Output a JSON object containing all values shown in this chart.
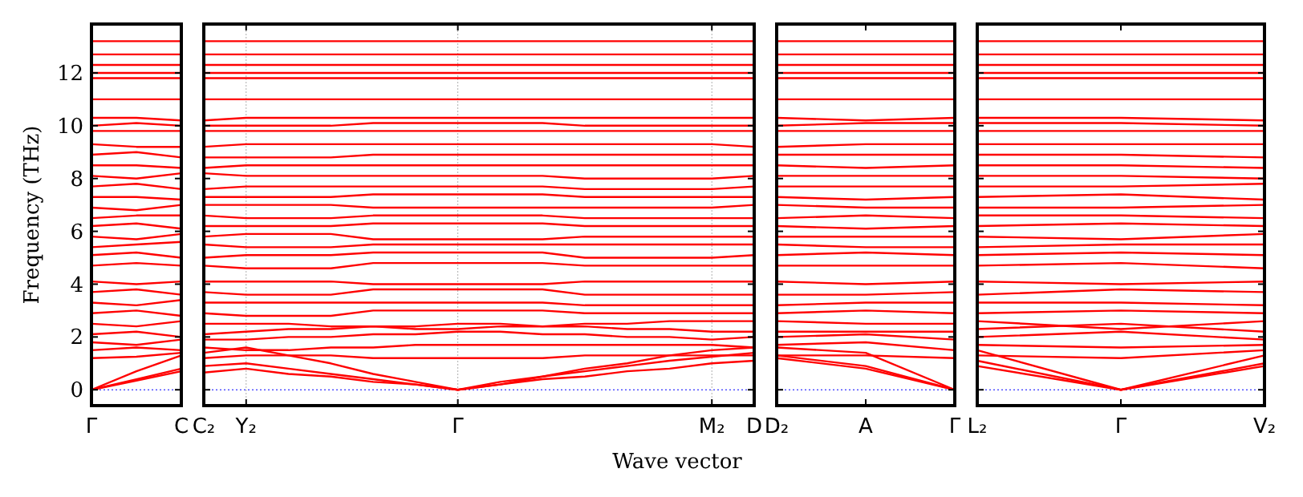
{
  "chart_data": [
    {
      "type": "line",
      "ylabel": "Frequency (THz)",
      "categories": [
        "Γ",
        null,
        "C"
      ],
      "ylim": [
        -0.6,
        13.85
      ],
      "yticks": [
        0,
        2,
        4,
        6,
        8,
        10,
        12
      ],
      "line_style": "solid",
      "ref_lines": [
        {
          "axis": "y",
          "value": 0,
          "color": "#0000ff",
          "line_style": "dotted"
        }
      ],
      "series": [
        {
          "color": "#ff0000",
          "values": [
            0,
            0.35,
            0.7
          ]
        },
        {
          "color": "#ff0000",
          "values": [
            0,
            0.4,
            0.8
          ]
        },
        {
          "color": "#ff0000",
          "values": [
            0,
            0.7,
            1.3
          ]
        },
        {
          "color": "#ff0000",
          "values": [
            1.2,
            1.25,
            1.4
          ]
        },
        {
          "color": "#ff0000",
          "values": [
            1.5,
            1.6,
            1.5
          ]
        },
        {
          "color": "#ff0000",
          "values": [
            1.8,
            1.7,
            1.9
          ]
        },
        {
          "color": "#ff0000",
          "values": [
            2.1,
            2.2,
            2.0
          ]
        },
        {
          "color": "#ff0000",
          "values": [
            2.5,
            2.4,
            2.6
          ]
        },
        {
          "color": "#ff0000",
          "values": [
            2.9,
            3.0,
            2.8
          ]
        },
        {
          "color": "#ff0000",
          "values": [
            3.3,
            3.2,
            3.4
          ]
        },
        {
          "color": "#ff0000",
          "values": [
            3.7,
            3.8,
            3.6
          ]
        },
        {
          "color": "#ff0000",
          "values": [
            4.1,
            4.0,
            4.1
          ]
        },
        {
          "color": "#ff0000",
          "values": [
            4.7,
            4.8,
            4.7
          ]
        },
        {
          "color": "#ff0000",
          "values": [
            5.1,
            5.2,
            5.0
          ]
        },
        {
          "color": "#ff0000",
          "values": [
            5.4,
            5.5,
            5.6
          ]
        },
        {
          "color": "#ff0000",
          "values": [
            5.8,
            5.7,
            5.9
          ]
        },
        {
          "color": "#ff0000",
          "values": [
            6.2,
            6.3,
            6.1
          ]
        },
        {
          "color": "#ff0000",
          "values": [
            6.5,
            6.6,
            6.6
          ]
        },
        {
          "color": "#ff0000",
          "values": [
            6.9,
            6.8,
            7.0
          ]
        },
        {
          "color": "#ff0000",
          "values": [
            7.3,
            7.3,
            7.2
          ]
        },
        {
          "color": "#ff0000",
          "values": [
            7.7,
            7.8,
            7.6
          ]
        },
        {
          "color": "#ff0000",
          "values": [
            8.1,
            8.0,
            8.2
          ]
        },
        {
          "color": "#ff0000",
          "values": [
            8.5,
            8.5,
            8.4
          ]
        },
        {
          "color": "#ff0000",
          "values": [
            8.9,
            9.0,
            8.8
          ]
        },
        {
          "color": "#ff0000",
          "values": [
            9.3,
            9.2,
            9.2
          ]
        },
        {
          "color": "#ff0000",
          "values": [
            9.8,
            9.8,
            9.8
          ]
        },
        {
          "color": "#ff0000",
          "values": [
            10.0,
            10.1,
            10.0
          ]
        },
        {
          "color": "#ff0000",
          "values": [
            10.3,
            10.3,
            10.2
          ]
        },
        {
          "color": "#ff0000",
          "values": [
            11.0,
            11.0,
            11.0
          ]
        },
        {
          "color": "#ff0000",
          "values": [
            11.8,
            11.8,
            11.8
          ]
        },
        {
          "color": "#ff0000",
          "values": [
            12.0,
            12.0,
            12.0
          ]
        },
        {
          "color": "#ff0000",
          "values": [
            12.3,
            12.3,
            12.3
          ]
        },
        {
          "color": "#ff0000",
          "values": [
            12.7,
            12.7,
            12.7
          ]
        },
        {
          "color": "#ff0000",
          "values": [
            13.2,
            13.2,
            13.2
          ]
        }
      ]
    },
    {
      "type": "line",
      "xlabel": "Wave vector",
      "categories": [
        "C₂",
        "Y₂",
        null,
        null,
        null,
        null,
        "Γ",
        null,
        null,
        null,
        null,
        null,
        "M₂",
        "D"
      ],
      "ylim": [
        -0.6,
        13.85
      ],
      "yticks": [
        0,
        2,
        4,
        6,
        8,
        10,
        12
      ],
      "tick_labels": "x",
      "grid": "x",
      "line_style": "solid",
      "ref_lines": [
        {
          "axis": "y",
          "value": 0,
          "color": "#0000ff",
          "line_style": "dotted"
        }
      ],
      "series": [
        {
          "color": "#ff0000",
          "values": [
            0.65,
            0.8,
            0.6,
            0.5,
            0.3,
            0.2,
            0,
            0.2,
            0.4,
            0.5,
            0.7,
            0.8,
            1.0,
            1.1
          ]
        },
        {
          "color": "#ff0000",
          "values": [
            0.9,
            1.0,
            0.8,
            0.6,
            0.4,
            0.2,
            0,
            0.2,
            0.5,
            0.7,
            0.9,
            1.1,
            1.25,
            1.4
          ]
        },
        {
          "color": "#ff0000",
          "values": [
            1.4,
            1.6,
            1.3,
            1.0,
            0.6,
            0.3,
            0,
            0.3,
            0.5,
            0.8,
            1.0,
            1.3,
            1.5,
            1.6
          ]
        },
        {
          "color": "#ff0000",
          "values": [
            1.2,
            1.3,
            1.3,
            1.3,
            1.2,
            1.2,
            1.2,
            1.2,
            1.2,
            1.3,
            1.3,
            1.3,
            1.3,
            1.3
          ]
        },
        {
          "color": "#ff0000",
          "values": [
            1.6,
            1.5,
            1.5,
            1.6,
            1.6,
            1.7,
            1.7,
            1.7,
            1.7,
            1.7,
            1.7,
            1.7,
            1.7,
            1.6
          ]
        },
        {
          "color": "#ff0000",
          "values": [
            1.9,
            1.9,
            2.0,
            2.0,
            2.1,
            2.1,
            2.2,
            2.2,
            2.1,
            2.1,
            2.0,
            2.0,
            1.9,
            2.0
          ]
        },
        {
          "color": "#ff0000",
          "values": [
            2.1,
            2.2,
            2.3,
            2.3,
            2.4,
            2.4,
            2.5,
            2.5,
            2.4,
            2.4,
            2.3,
            2.3,
            2.2,
            2.2
          ]
        },
        {
          "color": "#ff0000",
          "values": [
            2.5,
            2.5,
            2.5,
            2.4,
            2.4,
            2.3,
            2.3,
            2.4,
            2.4,
            2.5,
            2.5,
            2.6,
            2.6,
            2.6
          ]
        },
        {
          "color": "#ff0000",
          "values": [
            2.9,
            2.8,
            2.8,
            2.8,
            3.0,
            3.0,
            3.0,
            3.0,
            3.0,
            2.9,
            2.9,
            2.9,
            2.9,
            2.9
          ]
        },
        {
          "color": "#ff0000",
          "values": [
            3.3,
            3.3,
            3.3,
            3.3,
            3.3,
            3.3,
            3.3,
            3.3,
            3.3,
            3.2,
            3.2,
            3.2,
            3.2,
            3.2
          ]
        },
        {
          "color": "#ff0000",
          "values": [
            3.7,
            3.6,
            3.6,
            3.6,
            3.8,
            3.8,
            3.8,
            3.8,
            3.8,
            3.6,
            3.6,
            3.6,
            3.6,
            3.6
          ]
        },
        {
          "color": "#ff0000",
          "values": [
            4.1,
            4.1,
            4.1,
            4.1,
            4.0,
            4.0,
            4.0,
            4.0,
            4.0,
            4.1,
            4.1,
            4.1,
            4.1,
            4.1
          ]
        },
        {
          "color": "#ff0000",
          "values": [
            4.7,
            4.6,
            4.6,
            4.6,
            4.8,
            4.8,
            4.8,
            4.8,
            4.8,
            4.7,
            4.7,
            4.7,
            4.7,
            4.7
          ]
        },
        {
          "color": "#ff0000",
          "values": [
            5.0,
            5.1,
            5.1,
            5.1,
            5.2,
            5.2,
            5.2,
            5.2,
            5.2,
            5.0,
            5.0,
            5.0,
            5.0,
            5.1
          ]
        },
        {
          "color": "#ff0000",
          "values": [
            5.5,
            5.4,
            5.4,
            5.4,
            5.5,
            5.5,
            5.5,
            5.5,
            5.5,
            5.5,
            5.5,
            5.5,
            5.5,
            5.5
          ]
        },
        {
          "color": "#ff0000",
          "values": [
            5.8,
            5.9,
            5.9,
            5.9,
            5.7,
            5.7,
            5.7,
            5.7,
            5.7,
            5.8,
            5.8,
            5.8,
            5.8,
            5.8
          ]
        },
        {
          "color": "#ff0000",
          "values": [
            6.2,
            6.2,
            6.2,
            6.2,
            6.3,
            6.3,
            6.3,
            6.3,
            6.3,
            6.2,
            6.2,
            6.2,
            6.2,
            6.2
          ]
        },
        {
          "color": "#ff0000",
          "values": [
            6.6,
            6.5,
            6.5,
            6.5,
            6.6,
            6.6,
            6.6,
            6.6,
            6.6,
            6.5,
            6.5,
            6.5,
            6.5,
            6.5
          ]
        },
        {
          "color": "#ff0000",
          "values": [
            7.0,
            7.0,
            7.0,
            7.0,
            6.9,
            6.9,
            6.9,
            6.9,
            6.9,
            6.9,
            6.9,
            6.9,
            6.9,
            7.0
          ]
        },
        {
          "color": "#ff0000",
          "values": [
            7.3,
            7.3,
            7.3,
            7.3,
            7.4,
            7.4,
            7.4,
            7.4,
            7.4,
            7.3,
            7.3,
            7.3,
            7.3,
            7.3
          ]
        },
        {
          "color": "#ff0000",
          "values": [
            7.6,
            7.7,
            7.7,
            7.7,
            7.7,
            7.7,
            7.7,
            7.7,
            7.7,
            7.6,
            7.6,
            7.6,
            7.6,
            7.7
          ]
        },
        {
          "color": "#ff0000",
          "values": [
            8.2,
            8.1,
            8.1,
            8.1,
            8.1,
            8.1,
            8.1,
            8.1,
            8.1,
            8.0,
            8.0,
            8.0,
            8.0,
            8.1
          ]
        },
        {
          "color": "#ff0000",
          "values": [
            8.4,
            8.5,
            8.5,
            8.5,
            8.5,
            8.5,
            8.5,
            8.5,
            8.5,
            8.5,
            8.5,
            8.5,
            8.5,
            8.5
          ]
        },
        {
          "color": "#ff0000",
          "values": [
            8.8,
            8.8,
            8.8,
            8.8,
            8.9,
            8.9,
            8.9,
            8.9,
            8.9,
            8.9,
            8.9,
            8.9,
            8.9,
            8.9
          ]
        },
        {
          "color": "#ff0000",
          "values": [
            9.2,
            9.3,
            9.3,
            9.3,
            9.3,
            9.3,
            9.3,
            9.3,
            9.3,
            9.3,
            9.3,
            9.3,
            9.3,
            9.2
          ]
        },
        {
          "color": "#ff0000",
          "values": [
            9.8,
            9.8,
            9.8,
            9.8,
            9.8,
            9.8,
            9.8,
            9.8,
            9.8,
            9.8,
            9.8,
            9.8,
            9.8,
            9.8
          ]
        },
        {
          "color": "#ff0000",
          "values": [
            10.0,
            10.0,
            10.0,
            10.0,
            10.1,
            10.1,
            10.1,
            10.1,
            10.1,
            10.0,
            10.0,
            10.0,
            10.0,
            10.0
          ]
        },
        {
          "color": "#ff0000",
          "values": [
            10.2,
            10.3,
            10.3,
            10.3,
            10.3,
            10.3,
            10.3,
            10.3,
            10.3,
            10.3,
            10.3,
            10.3,
            10.3,
            10.3
          ]
        },
        {
          "color": "#ff0000",
          "values": [
            11.0,
            11.0,
            11.0,
            11.0,
            11.0,
            11.0,
            11.0,
            11.0,
            11.0,
            11.0,
            11.0,
            11.0,
            11.0,
            11.0
          ]
        },
        {
          "color": "#ff0000",
          "values": [
            11.8,
            11.8,
            11.8,
            11.8,
            11.8,
            11.8,
            11.8,
            11.8,
            11.8,
            11.8,
            11.8,
            11.8,
            11.8,
            11.8
          ]
        },
        {
          "color": "#ff0000",
          "values": [
            12.0,
            12.0,
            12.0,
            12.0,
            12.0,
            12.0,
            12.0,
            12.0,
            12.0,
            12.0,
            12.0,
            12.0,
            12.0,
            12.0
          ]
        },
        {
          "color": "#ff0000",
          "values": [
            12.3,
            12.3,
            12.3,
            12.3,
            12.3,
            12.3,
            12.3,
            12.3,
            12.3,
            12.3,
            12.3,
            12.3,
            12.3,
            12.3
          ]
        },
        {
          "color": "#ff0000",
          "values": [
            12.7,
            12.7,
            12.7,
            12.7,
            12.7,
            12.7,
            12.7,
            12.7,
            12.7,
            12.7,
            12.7,
            12.7,
            12.7,
            12.7
          ]
        },
        {
          "color": "#ff0000",
          "values": [
            13.2,
            13.2,
            13.2,
            13.2,
            13.2,
            13.2,
            13.2,
            13.2,
            13.2,
            13.2,
            13.2,
            13.2,
            13.2,
            13.2
          ]
        }
      ]
    },
    {
      "type": "line",
      "categories": [
        "D₂",
        "A",
        "Γ"
      ],
      "ylim": [
        -0.6,
        13.85
      ],
      "yticks": [
        0,
        2,
        4,
        6,
        8,
        10,
        12
      ],
      "tick_labels": "x",
      "line_style": "solid",
      "ref_lines": [
        {
          "axis": "y",
          "value": 0,
          "color": "#0000ff",
          "line_style": "dotted"
        }
      ],
      "series": [
        {
          "color": "#ff0000",
          "values": [
            1.2,
            0.8,
            0
          ]
        },
        {
          "color": "#ff0000",
          "values": [
            1.3,
            0.9,
            0
          ]
        },
        {
          "color": "#ff0000",
          "values": [
            1.6,
            1.4,
            0
          ]
        },
        {
          "color": "#ff0000",
          "values": [
            1.3,
            1.3,
            1.2
          ]
        },
        {
          "color": "#ff0000",
          "values": [
            1.7,
            1.8,
            1.5
          ]
        },
        {
          "color": "#ff0000",
          "values": [
            2.0,
            2.1,
            1.9
          ]
        },
        {
          "color": "#ff0000",
          "values": [
            2.2,
            2.2,
            2.2
          ]
        },
        {
          "color": "#ff0000",
          "values": [
            2.6,
            2.5,
            2.5
          ]
        },
        {
          "color": "#ff0000",
          "values": [
            2.9,
            3.0,
            2.9
          ]
        },
        {
          "color": "#ff0000",
          "values": [
            3.2,
            3.3,
            3.3
          ]
        },
        {
          "color": "#ff0000",
          "values": [
            3.6,
            3.6,
            3.7
          ]
        },
        {
          "color": "#ff0000",
          "values": [
            4.1,
            4.0,
            4.1
          ]
        },
        {
          "color": "#ff0000",
          "values": [
            4.7,
            4.7,
            4.7
          ]
        },
        {
          "color": "#ff0000",
          "values": [
            5.1,
            5.2,
            5.1
          ]
        },
        {
          "color": "#ff0000",
          "values": [
            5.5,
            5.4,
            5.4
          ]
        },
        {
          "color": "#ff0000",
          "values": [
            5.8,
            5.8,
            5.8
          ]
        },
        {
          "color": "#ff0000",
          "values": [
            6.2,
            6.1,
            6.2
          ]
        },
        {
          "color": "#ff0000",
          "values": [
            6.5,
            6.6,
            6.5
          ]
        },
        {
          "color": "#ff0000",
          "values": [
            7.0,
            6.9,
            6.9
          ]
        },
        {
          "color": "#ff0000",
          "values": [
            7.3,
            7.2,
            7.3
          ]
        },
        {
          "color": "#ff0000",
          "values": [
            7.7,
            7.7,
            7.7
          ]
        },
        {
          "color": "#ff0000",
          "values": [
            8.1,
            8.1,
            8.1
          ]
        },
        {
          "color": "#ff0000",
          "values": [
            8.5,
            8.4,
            8.5
          ]
        },
        {
          "color": "#ff0000",
          "values": [
            8.9,
            8.9,
            8.9
          ]
        },
        {
          "color": "#ff0000",
          "values": [
            9.2,
            9.3,
            9.3
          ]
        },
        {
          "color": "#ff0000",
          "values": [
            9.8,
            9.8,
            9.8
          ]
        },
        {
          "color": "#ff0000",
          "values": [
            10.0,
            10.1,
            10.1
          ]
        },
        {
          "color": "#ff0000",
          "values": [
            10.3,
            10.2,
            10.3
          ]
        },
        {
          "color": "#ff0000",
          "values": [
            11.0,
            11.0,
            11.0
          ]
        },
        {
          "color": "#ff0000",
          "values": [
            11.8,
            11.8,
            11.8
          ]
        },
        {
          "color": "#ff0000",
          "values": [
            12.0,
            12.0,
            12.0
          ]
        },
        {
          "color": "#ff0000",
          "values": [
            12.3,
            12.3,
            12.3
          ]
        },
        {
          "color": "#ff0000",
          "values": [
            12.7,
            12.7,
            12.7
          ]
        },
        {
          "color": "#ff0000",
          "values": [
            13.2,
            13.2,
            13.2
          ]
        }
      ]
    },
    {
      "type": "line",
      "categories": [
        "L₂",
        "Γ",
        "V₂"
      ],
      "ylim": [
        -0.6,
        13.85
      ],
      "yticks": [
        0,
        2,
        4,
        6,
        8,
        10,
        12
      ],
      "tick_labels": "x",
      "line_style": "solid",
      "ref_lines": [
        {
          "axis": "y",
          "value": 0,
          "color": "#0000ff",
          "line_style": "dotted"
        }
      ],
      "series": [
        {
          "color": "#ff0000",
          "values": [
            0.9,
            0,
            0.9
          ]
        },
        {
          "color": "#ff0000",
          "values": [
            1.1,
            0,
            1.0
          ]
        },
        {
          "color": "#ff0000",
          "values": [
            1.5,
            0,
            1.3
          ]
        },
        {
          "color": "#ff0000",
          "values": [
            1.3,
            1.2,
            1.5
          ]
        },
        {
          "color": "#ff0000",
          "values": [
            1.7,
            1.6,
            1.7
          ]
        },
        {
          "color": "#ff0000",
          "values": [
            2.0,
            2.2,
            1.9
          ]
        },
        {
          "color": "#ff0000",
          "values": [
            2.3,
            2.5,
            2.2
          ]
        },
        {
          "color": "#ff0000",
          "values": [
            2.6,
            2.3,
            2.6
          ]
        },
        {
          "color": "#ff0000",
          "values": [
            2.9,
            3.0,
            2.9
          ]
        },
        {
          "color": "#ff0000",
          "values": [
            3.3,
            3.3,
            3.2
          ]
        },
        {
          "color": "#ff0000",
          "values": [
            3.6,
            3.8,
            3.7
          ]
        },
        {
          "color": "#ff0000",
          "values": [
            4.1,
            4.0,
            4.1
          ]
        },
        {
          "color": "#ff0000",
          "values": [
            4.7,
            4.8,
            4.6
          ]
        },
        {
          "color": "#ff0000",
          "values": [
            5.1,
            5.2,
            5.1
          ]
        },
        {
          "color": "#ff0000",
          "values": [
            5.4,
            5.5,
            5.5
          ]
        },
        {
          "color": "#ff0000",
          "values": [
            5.8,
            5.7,
            5.9
          ]
        },
        {
          "color": "#ff0000",
          "values": [
            6.2,
            6.3,
            6.2
          ]
        },
        {
          "color": "#ff0000",
          "values": [
            6.6,
            6.6,
            6.5
          ]
        },
        {
          "color": "#ff0000",
          "values": [
            6.9,
            6.9,
            7.0
          ]
        },
        {
          "color": "#ff0000",
          "values": [
            7.3,
            7.4,
            7.2
          ]
        },
        {
          "color": "#ff0000",
          "values": [
            7.7,
            7.7,
            7.8
          ]
        },
        {
          "color": "#ff0000",
          "values": [
            8.1,
            8.1,
            8.0
          ]
        },
        {
          "color": "#ff0000",
          "values": [
            8.5,
            8.5,
            8.4
          ]
        },
        {
          "color": "#ff0000",
          "values": [
            8.9,
            8.9,
            8.8
          ]
        },
        {
          "color": "#ff0000",
          "values": [
            9.3,
            9.3,
            9.3
          ]
        },
        {
          "color": "#ff0000",
          "values": [
            9.8,
            9.8,
            9.8
          ]
        },
        {
          "color": "#ff0000",
          "values": [
            10.1,
            10.1,
            10.0
          ]
        },
        {
          "color": "#ff0000",
          "values": [
            10.3,
            10.3,
            10.2
          ]
        },
        {
          "color": "#ff0000",
          "values": [
            11.0,
            11.0,
            11.0
          ]
        },
        {
          "color": "#ff0000",
          "values": [
            11.8,
            11.8,
            11.8
          ]
        },
        {
          "color": "#ff0000",
          "values": [
            12.0,
            12.0,
            12.0
          ]
        },
        {
          "color": "#ff0000",
          "values": [
            12.3,
            12.3,
            12.3
          ]
        },
        {
          "color": "#ff0000",
          "values": [
            12.7,
            12.7,
            12.7
          ]
        },
        {
          "color": "#ff0000",
          "values": [
            13.2,
            13.2,
            13.2
          ]
        }
      ]
    }
  ]
}
